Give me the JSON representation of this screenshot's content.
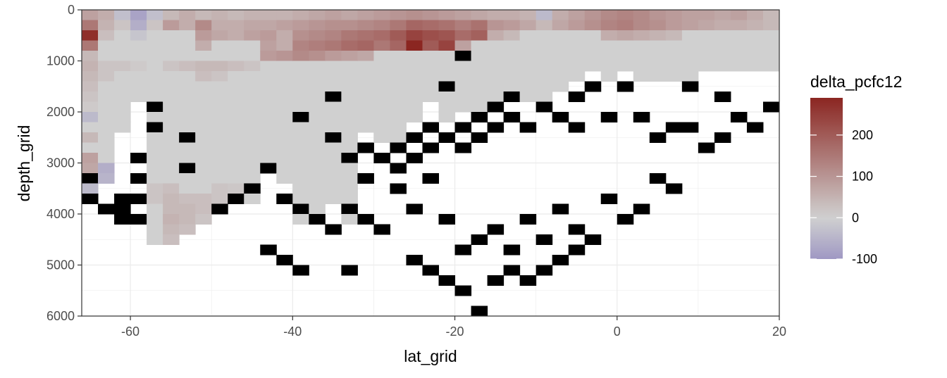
{
  "chart_data": {
    "type": "heatmap",
    "xlabel": "lat_grid",
    "ylabel": "depth_grid",
    "xlim": [
      -66,
      20
    ],
    "ylim": [
      0,
      6000
    ],
    "y_reversed": true,
    "x_ticks": [
      -60,
      -40,
      -20,
      0,
      20
    ],
    "y_ticks": [
      0,
      1000,
      2000,
      3000,
      4000,
      5000,
      6000
    ],
    "x_tick_labels": [
      "-60",
      "-40",
      "-20",
      "0",
      "20"
    ],
    "y_tick_labels": [
      "0",
      "1000",
      "2000",
      "3000",
      "4000",
      "5000",
      "6000"
    ],
    "grid": true,
    "cell_size": {
      "lat": 2,
      "depth": 200
    },
    "legend": {
      "title": "delta_pcfc12",
      "position": "right",
      "range": [
        -100,
        290
      ],
      "breaks": [
        200,
        100,
        0,
        -100
      ],
      "break_labels": [
        "200",
        "100",
        "0",
        "-100"
      ],
      "low_color": "#9f98c3",
      "mid_color": "#d0d0d0",
      "high_color": "#8b2621",
      "midpoint": 0
    },
    "land_color": "#000000",
    "column_bottoms": [
      [
        -65,
        3600
      ],
      [
        -63,
        3400
      ],
      [
        -61,
        2400
      ],
      [
        -59,
        1800
      ],
      [
        -57,
        4600
      ],
      [
        -55,
        4600
      ],
      [
        -53,
        4400
      ],
      [
        -51,
        4200
      ],
      [
        -49,
        4000
      ],
      [
        -47,
        3800
      ],
      [
        -45,
        3800
      ],
      [
        -43,
        3000
      ],
      [
        -41,
        3400
      ],
      [
        -39,
        4200
      ],
      [
        -37,
        4200
      ],
      [
        -35,
        3800
      ],
      [
        -33,
        4200
      ],
      [
        -31,
        2400
      ],
      [
        -29,
        2600
      ],
      [
        -27,
        2600
      ],
      [
        -25,
        2200
      ],
      [
        -23,
        1800
      ],
      [
        -21,
        2200
      ],
      [
        -19,
        2000
      ],
      [
        -17,
        2000
      ],
      [
        -15,
        1800
      ],
      [
        -13,
        1800
      ],
      [
        -11,
        1800
      ],
      [
        -9,
        1800
      ],
      [
        -7,
        1600
      ],
      [
        -5,
        1400
      ],
      [
        -3,
        1200
      ],
      [
        -1,
        1400
      ],
      [
        1,
        1200
      ],
      [
        3,
        1400
      ],
      [
        5,
        1400
      ],
      [
        7,
        1400
      ],
      [
        9,
        1400
      ],
      [
        11,
        1200
      ],
      [
        13,
        1200
      ],
      [
        15,
        1200
      ],
      [
        17,
        1200
      ],
      [
        19,
        1200
      ]
    ],
    "land_cells": [
      [
        -65,
        3300
      ],
      [
        -65,
        3700
      ],
      [
        -63,
        3900
      ],
      [
        -61,
        3700
      ],
      [
        -61,
        3900
      ],
      [
        -61,
        4100
      ],
      [
        -59,
        2900
      ],
      [
        -59,
        3300
      ],
      [
        -59,
        3700
      ],
      [
        -59,
        4100
      ],
      [
        -57,
        1900
      ],
      [
        -57,
        2300
      ],
      [
        -53,
        2500
      ],
      [
        -53,
        3100
      ],
      [
        -43,
        3100
      ],
      [
        -39,
        2100
      ],
      [
        -35,
        1700
      ],
      [
        -35,
        2500
      ],
      [
        -33,
        2900
      ],
      [
        -31,
        2700
      ],
      [
        -31,
        3300
      ],
      [
        -29,
        2900
      ],
      [
        -27,
        2700
      ],
      [
        -27,
        3100
      ],
      [
        -25,
        2500
      ],
      [
        -25,
        2900
      ],
      [
        -23,
        2300
      ],
      [
        -23,
        2700
      ],
      [
        -21,
        1500
      ],
      [
        -21,
        2500
      ],
      [
        -19,
        900
      ],
      [
        -19,
        2300
      ],
      [
        -19,
        2700
      ],
      [
        -17,
        2100
      ],
      [
        -17,
        2500
      ],
      [
        -15,
        1900
      ],
      [
        -15,
        2300
      ],
      [
        -13,
        1700
      ],
      [
        -13,
        2100
      ],
      [
        -11,
        2300
      ],
      [
        -9,
        1900
      ],
      [
        -7,
        2100
      ],
      [
        -5,
        1700
      ],
      [
        -5,
        2300
      ],
      [
        -3,
        1500
      ],
      [
        -1,
        2100
      ],
      [
        1,
        1500
      ],
      [
        3,
        2100
      ],
      [
        5,
        2500
      ],
      [
        7,
        2300
      ],
      [
        9,
        1500
      ],
      [
        9,
        2300
      ],
      [
        11,
        2700
      ],
      [
        13,
        1700
      ],
      [
        13,
        2500
      ],
      [
        15,
        2100
      ],
      [
        17,
        2300
      ],
      [
        19,
        1900
      ],
      [
        -49,
        3900
      ],
      [
        -47,
        3700
      ],
      [
        -45,
        3500
      ],
      [
        -41,
        3700
      ],
      [
        -39,
        3900
      ],
      [
        -37,
        4100
      ],
      [
        -35,
        4300
      ],
      [
        -33,
        3900
      ],
      [
        -31,
        4100
      ],
      [
        -29,
        4300
      ],
      [
        -27,
        3500
      ],
      [
        -25,
        3900
      ],
      [
        -23,
        3300
      ],
      [
        -21,
        4100
      ],
      [
        -19,
        4700
      ],
      [
        -17,
        4500
      ],
      [
        -15,
        4300
      ],
      [
        -13,
        4700
      ],
      [
        -11,
        4100
      ],
      [
        -9,
        4500
      ],
      [
        -7,
        3900
      ],
      [
        -5,
        4300
      ],
      [
        -3,
        4500
      ],
      [
        -1,
        3700
      ],
      [
        1,
        4100
      ],
      [
        3,
        3900
      ],
      [
        5,
        3300
      ],
      [
        7,
        3500
      ],
      [
        -43,
        4700
      ],
      [
        -41,
        4900
      ],
      [
        -39,
        5100
      ],
      [
        -33,
        5100
      ],
      [
        -25,
        4900
      ],
      [
        -23,
        5100
      ],
      [
        -21,
        5300
      ],
      [
        -19,
        5500
      ],
      [
        -17,
        5900
      ],
      [
        -15,
        5300
      ],
      [
        -13,
        5100
      ],
      [
        -11,
        5300
      ],
      [
        -9,
        5100
      ],
      [
        -7,
        4900
      ],
      [
        -5,
        4700
      ],
      [
        -3,
        4500
      ]
    ],
    "values": [
      [
        -65,
        100,
        80
      ],
      [
        -65,
        300,
        150
      ],
      [
        -65,
        500,
        275
      ],
      [
        -65,
        700,
        150
      ],
      [
        -65,
        900,
        40
      ],
      [
        -63,
        100,
        60
      ],
      [
        -63,
        300,
        50
      ],
      [
        -63,
        500,
        30
      ],
      [
        -61,
        100,
        -30
      ],
      [
        -61,
        300,
        20
      ],
      [
        -59,
        100,
        -80
      ],
      [
        -59,
        300,
        -60
      ],
      [
        -59,
        500,
        -20
      ],
      [
        -57,
        100,
        -30
      ],
      [
        -57,
        300,
        20
      ],
      [
        -55,
        100,
        40
      ],
      [
        -55,
        300,
        90
      ],
      [
        -53,
        100,
        60
      ],
      [
        -53,
        300,
        60
      ],
      [
        -51,
        100,
        40
      ],
      [
        -51,
        300,
        120
      ],
      [
        -51,
        500,
        90
      ],
      [
        -51,
        700,
        60
      ],
      [
        -49,
        100,
        50
      ],
      [
        -49,
        300,
        60
      ],
      [
        -49,
        500,
        70
      ],
      [
        -47,
        100,
        40
      ],
      [
        -47,
        300,
        60
      ],
      [
        -47,
        500,
        60
      ],
      [
        -45,
        100,
        50
      ],
      [
        -45,
        300,
        70
      ],
      [
        -45,
        500,
        80
      ],
      [
        -43,
        100,
        50
      ],
      [
        -43,
        300,
        70
      ],
      [
        -43,
        500,
        90
      ],
      [
        -43,
        700,
        80
      ],
      [
        -43,
        900,
        90
      ],
      [
        -41,
        100,
        50
      ],
      [
        -41,
        300,
        80
      ],
      [
        -41,
        500,
        60
      ],
      [
        -41,
        700,
        60
      ],
      [
        -41,
        900,
        100
      ],
      [
        -39,
        100,
        60
      ],
      [
        -39,
        300,
        90
      ],
      [
        -39,
        500,
        110
      ],
      [
        -39,
        700,
        130
      ],
      [
        -39,
        900,
        120
      ],
      [
        -37,
        100,
        70
      ],
      [
        -37,
        300,
        100
      ],
      [
        -37,
        500,
        120
      ],
      [
        -37,
        700,
        140
      ],
      [
        -37,
        900,
        110
      ],
      [
        -35,
        100,
        80
      ],
      [
        -35,
        300,
        110
      ],
      [
        -35,
        500,
        130
      ],
      [
        -35,
        700,
        150
      ],
      [
        -35,
        900,
        90
      ],
      [
        -33,
        100,
        70
      ],
      [
        -33,
        300,
        110
      ],
      [
        -33,
        500,
        150
      ],
      [
        -33,
        700,
        170
      ],
      [
        -33,
        900,
        80
      ],
      [
        -31,
        100,
        80
      ],
      [
        -31,
        300,
        120
      ],
      [
        -31,
        500,
        160
      ],
      [
        -31,
        700,
        180
      ],
      [
        -31,
        900,
        70
      ],
      [
        -29,
        100,
        90
      ],
      [
        -29,
        300,
        130
      ],
      [
        -29,
        500,
        170
      ],
      [
        -29,
        700,
        150
      ],
      [
        -27,
        100,
        100
      ],
      [
        -27,
        300,
        150
      ],
      [
        -27,
        500,
        200
      ],
      [
        -27,
        700,
        180
      ],
      [
        -25,
        100,
        110
      ],
      [
        -25,
        300,
        180
      ],
      [
        -25,
        500,
        240
      ],
      [
        -25,
        700,
        290
      ],
      [
        -23,
        100,
        100
      ],
      [
        -23,
        300,
        170
      ],
      [
        -23,
        500,
        220
      ],
      [
        -23,
        700,
        200
      ],
      [
        -21,
        100,
        90
      ],
      [
        -21,
        300,
        160
      ],
      [
        -21,
        500,
        210
      ],
      [
        -21,
        700,
        240
      ],
      [
        -19,
        100,
        80
      ],
      [
        -19,
        300,
        140
      ],
      [
        -19,
        500,
        170
      ],
      [
        -19,
        700,
        80
      ],
      [
        -17,
        100,
        70
      ],
      [
        -17,
        300,
        160
      ],
      [
        -17,
        500,
        190
      ],
      [
        -15,
        100,
        60
      ],
      [
        -15,
        300,
        100
      ],
      [
        -15,
        500,
        60
      ],
      [
        -13,
        100,
        60
      ],
      [
        -13,
        300,
        90
      ],
      [
        -13,
        500,
        40
      ],
      [
        -11,
        100,
        50
      ],
      [
        -11,
        300,
        70
      ],
      [
        -9,
        100,
        -40
      ],
      [
        -9,
        300,
        40
      ],
      [
        -7,
        100,
        60
      ],
      [
        -7,
        300,
        70
      ],
      [
        -5,
        100,
        80
      ],
      [
        -5,
        300,
        90
      ],
      [
        -3,
        100,
        100
      ],
      [
        -3,
        300,
        110
      ],
      [
        -1,
        100,
        120
      ],
      [
        -1,
        300,
        130
      ],
      [
        -1,
        500,
        60
      ],
      [
        1,
        100,
        130
      ],
      [
        1,
        300,
        140
      ],
      [
        1,
        500,
        70
      ],
      [
        3,
        100,
        120
      ],
      [
        3,
        300,
        120
      ],
      [
        3,
        500,
        60
      ],
      [
        5,
        100,
        100
      ],
      [
        5,
        300,
        110
      ],
      [
        5,
        500,
        50
      ],
      [
        7,
        100,
        90
      ],
      [
        7,
        300,
        90
      ],
      [
        7,
        500,
        40
      ],
      [
        9,
        100,
        80
      ],
      [
        9,
        300,
        80
      ],
      [
        11,
        100,
        80
      ],
      [
        11,
        300,
        70
      ],
      [
        13,
        100,
        70
      ],
      [
        13,
        300,
        60
      ],
      [
        15,
        100,
        80
      ],
      [
        15,
        300,
        60
      ],
      [
        17,
        100,
        60
      ],
      [
        17,
        300,
        50
      ],
      [
        19,
        100,
        40
      ],
      [
        19,
        300,
        40
      ],
      [
        -65,
        1100,
        50
      ],
      [
        -65,
        1300,
        40
      ],
      [
        -65,
        1500,
        30
      ],
      [
        -65,
        1700,
        20
      ],
      [
        -65,
        1900,
        10
      ],
      [
        -65,
        2100,
        -40
      ],
      [
        -65,
        2500,
        40
      ],
      [
        -65,
        2900,
        80
      ],
      [
        -65,
        3100,
        70
      ],
      [
        -65,
        3500,
        -40
      ],
      [
        -63,
        3100,
        -60
      ],
      [
        -63,
        3300,
        -50
      ],
      [
        -63,
        3500,
        -50
      ],
      [
        -63,
        1100,
        20
      ],
      [
        -63,
        1300,
        20
      ],
      [
        -61,
        1100,
        20
      ],
      [
        -59,
        1100,
        10
      ],
      [
        -55,
        3500,
        30
      ],
      [
        -55,
        3700,
        40
      ],
      [
        -55,
        3900,
        40
      ],
      [
        -55,
        4100,
        50
      ],
      [
        -55,
        4300,
        40
      ],
      [
        -55,
        4500,
        30
      ],
      [
        -53,
        3700,
        30
      ],
      [
        -53,
        3900,
        40
      ],
      [
        -53,
        4100,
        40
      ],
      [
        -53,
        4300,
        30
      ],
      [
        -51,
        3700,
        30
      ],
      [
        -51,
        3900,
        30
      ],
      [
        -51,
        4100,
        20
      ],
      [
        -49,
        3500,
        20
      ],
      [
        -49,
        3700,
        20
      ],
      [
        -47,
        3500,
        15
      ],
      [
        -55,
        1100,
        20
      ],
      [
        -53,
        1100,
        30
      ],
      [
        -51,
        1100,
        40
      ],
      [
        -49,
        1100,
        40
      ],
      [
        -47,
        1100,
        30
      ],
      [
        -45,
        1100,
        20
      ],
      [
        -51,
        1300,
        30
      ],
      [
        -49,
        1300,
        20
      ],
      [
        -57,
        3500,
        20
      ],
      [
        -57,
        3700,
        20
      ]
    ]
  }
}
